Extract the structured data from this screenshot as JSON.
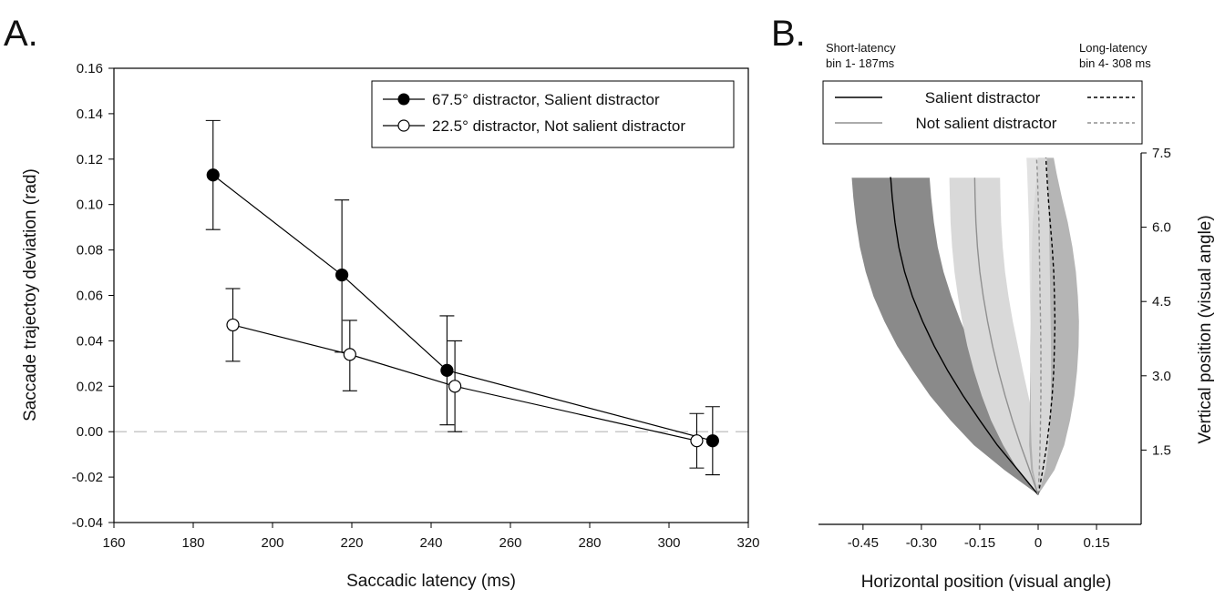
{
  "panel_a_letter": "A.",
  "panel_b_letter": "B.",
  "chart_data": [
    {
      "type": "line",
      "panel": "A.",
      "xlabel": "Saccadic latency (ms)",
      "ylabel": "Saccade trajectoy deviation (rad)",
      "xlim": [
        160,
        320
      ],
      "ylim": [
        -0.04,
        0.16
      ],
      "xticks": [
        160,
        180,
        200,
        220,
        240,
        260,
        280,
        300,
        320
      ],
      "yticks": [
        "-0.04",
        "-0.02",
        "0.00",
        "0.02",
        "0.04",
        "0.06",
        "0.08",
        "0.10",
        "0.12",
        "0.14",
        "0.16"
      ],
      "grid": false,
      "reference_line": 0,
      "legend_position": "top-right",
      "series": [
        {
          "name": "67.5° distractor, Salient distractor",
          "marker": "filled",
          "x": [
            185,
            217.5,
            244,
            311
          ],
          "y": [
            0.113,
            0.069,
            0.027,
            -0.004
          ],
          "err_low": [
            0.089,
            0.035,
            0.003,
            -0.019
          ],
          "err_high": [
            0.137,
            0.102,
            0.051,
            0.011
          ]
        },
        {
          "name": "22.5° distractor, Not salient distractor",
          "marker": "open",
          "x": [
            190,
            219.5,
            246,
            307
          ],
          "y": [
            0.047,
            0.034,
            0.02,
            -0.004
          ],
          "err_low": [
            0.031,
            0.018,
            0.0,
            -0.016
          ],
          "err_high": [
            0.063,
            0.049,
            0.04,
            0.008
          ]
        }
      ]
    },
    {
      "type": "line",
      "panel": "B.",
      "xlabel": "Horizontal position (visual angle)",
      "ylabel": "Vertical position (visual angle)",
      "xlim": [
        -0.6,
        0.3
      ],
      "ylim": [
        0,
        7.5
      ],
      "xticks": [
        "-0.45",
        "-0.30",
        "-0.15",
        "0",
        "0.15"
      ],
      "xtick_values": [
        -0.45,
        -0.3,
        -0.15,
        0,
        0.15
      ],
      "yticks": [
        "1.5",
        "3.0",
        "4.5",
        "6.0",
        "7.5"
      ],
      "ytick_values": [
        1.5,
        3.0,
        4.5,
        6.0,
        7.5
      ],
      "grid": false,
      "legend_position": "top",
      "short_label": "Short-latency",
      "short_bin": "bin 1-  187ms",
      "long_label": "Long-latency",
      "long_bin": "bin 4-  308 ms",
      "series": [
        {
          "name": "Salient distractor",
          "latency": "short",
          "style": "solid",
          "color": "#000000",
          "band": "#8a8a8a",
          "x": [
            0,
            -0.052,
            -0.105,
            -0.15,
            -0.193,
            -0.232,
            -0.267,
            -0.297,
            -0.323,
            -0.343,
            -0.358,
            -0.368,
            -0.375,
            -0.379,
            -0.381
          ],
          "y": [
            0.6,
            1.1,
            1.6,
            2.1,
            2.6,
            3.1,
            3.6,
            4.1,
            4.6,
            5.1,
            5.6,
            6.1,
            6.6,
            7.0,
            7.0
          ],
          "sd": [
            0,
            0.035,
            0.06,
            0.075,
            0.085,
            0.09,
            0.095,
            0.098,
            0.1,
            0.1,
            0.1,
            0.1,
            0.1,
            0.1,
            0.1
          ]
        },
        {
          "name": "Not salient distractor",
          "latency": "short",
          "style": "solid",
          "color": "#909090",
          "band": "#d9d9d9",
          "x": [
            0,
            -0.022,
            -0.045,
            -0.066,
            -0.085,
            -0.102,
            -0.117,
            -0.13,
            -0.141,
            -0.15,
            -0.156,
            -0.16,
            -0.162,
            -0.163,
            -0.163
          ],
          "y": [
            0.6,
            1.1,
            1.6,
            2.1,
            2.6,
            3.1,
            3.6,
            4.1,
            4.6,
            5.1,
            5.6,
            6.1,
            6.6,
            7.0,
            7.0
          ],
          "sd": [
            0,
            0.03,
            0.045,
            0.055,
            0.06,
            0.063,
            0.065,
            0.065,
            0.065,
            0.065,
            0.065,
            0.065,
            0.065,
            0.065,
            0.065
          ]
        },
        {
          "name": "Salient distractor",
          "latency": "long",
          "style": "dashed",
          "color": "#000000",
          "band": "#a8a8a8",
          "x": [
            0,
            0.012,
            0.022,
            0.03,
            0.036,
            0.04,
            0.042,
            0.043,
            0.042,
            0.04,
            0.036,
            0.031,
            0.026,
            0.022,
            0.02
          ],
          "y": [
            0.6,
            1.1,
            1.6,
            2.1,
            2.6,
            3.1,
            3.6,
            4.1,
            4.6,
            5.1,
            5.6,
            6.1,
            6.6,
            7.1,
            7.4
          ],
          "sd": [
            0,
            0.03,
            0.045,
            0.052,
            0.057,
            0.06,
            0.062,
            0.062,
            0.06,
            0.057,
            0.052,
            0.045,
            0.035,
            0.025,
            0.02
          ]
        },
        {
          "name": "Not salient distractor",
          "latency": "long",
          "style": "dashed",
          "color": "#909090",
          "band": "#dddddd",
          "x": [
            0,
            0.003,
            0.005,
            0.006,
            0.007,
            0.007,
            0.007,
            0.006,
            0.005,
            0.004,
            0.003,
            0.002,
            0.0,
            -0.002,
            -0.004
          ],
          "y": [
            0.6,
            1.1,
            1.6,
            2.1,
            2.6,
            3.1,
            3.6,
            4.1,
            4.6,
            5.1,
            5.6,
            6.1,
            6.6,
            7.1,
            7.4
          ],
          "sd": [
            0,
            0.016,
            0.022,
            0.025,
            0.026,
            0.026,
            0.026,
            0.026,
            0.026,
            0.026,
            0.026,
            0.026,
            0.026,
            0.026,
            0.026
          ]
        }
      ]
    }
  ]
}
